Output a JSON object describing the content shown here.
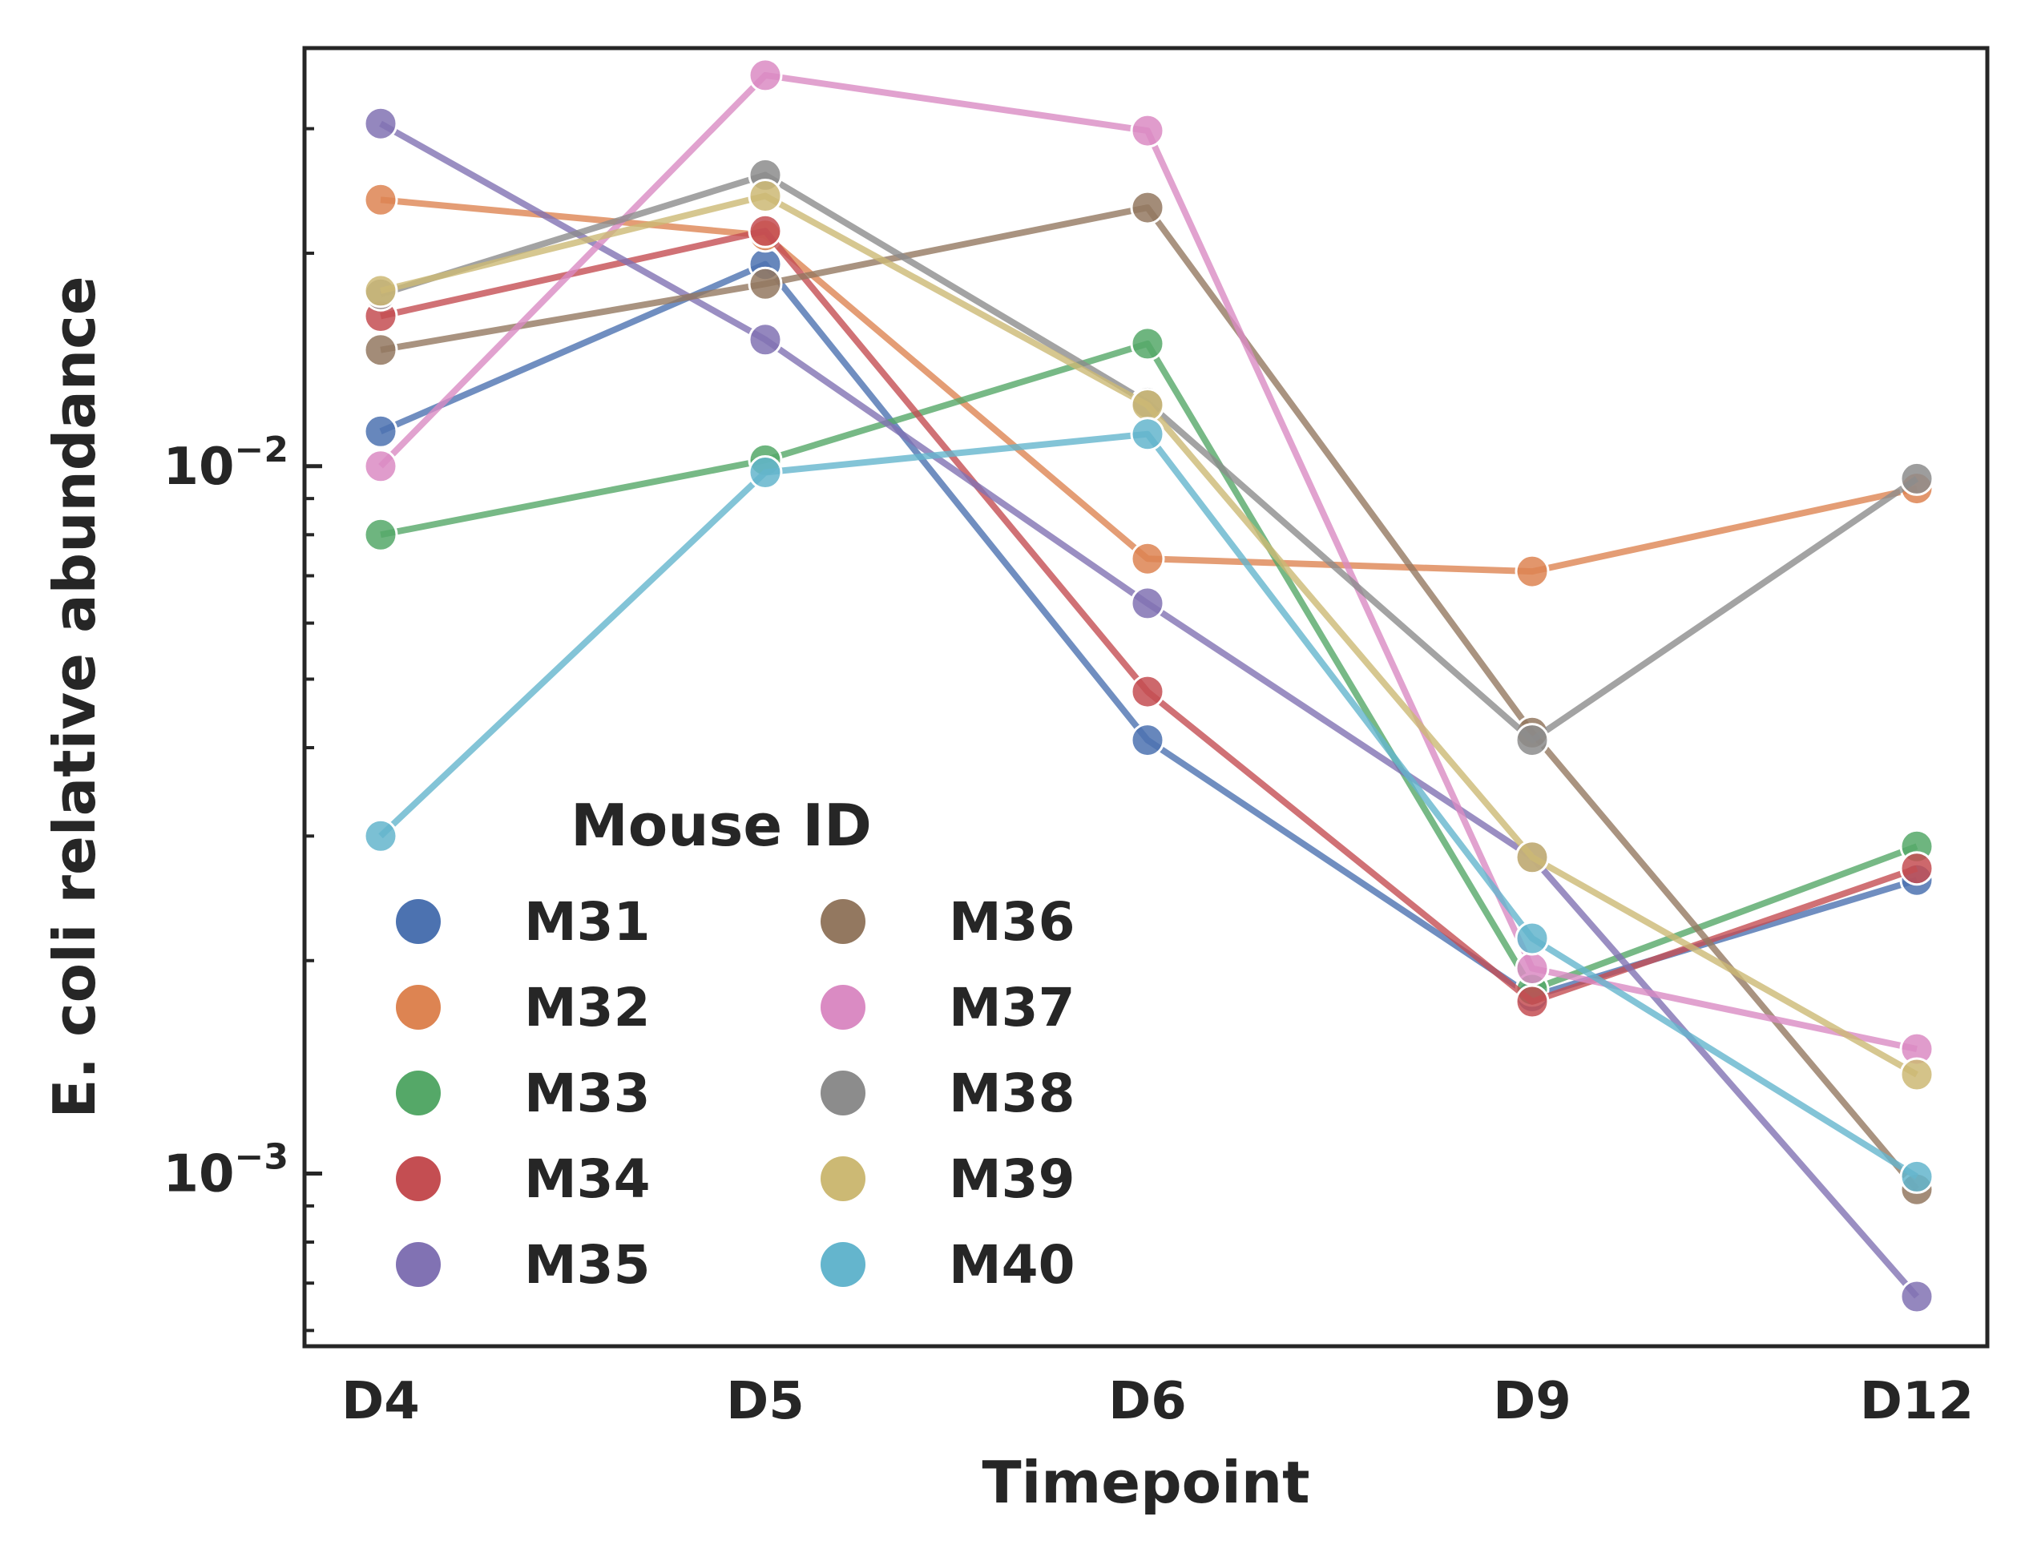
{
  "chart_data": {
    "type": "line",
    "title": "",
    "xlabel": "Timepoint",
    "ylabel": "E. coli relative abundance",
    "y_scale": "log",
    "ylim": [
      0.00057,
      0.039
    ],
    "grid": false,
    "x": [
      "D4",
      "D5",
      "D6",
      "D9",
      "D12"
    ],
    "y_ticks": [
      {
        "value": 0.01,
        "label_base": "10",
        "label_exp": "−2"
      },
      {
        "value": 0.001,
        "label_base": "10",
        "label_exp": "−3"
      }
    ],
    "legend": {
      "title": "Mouse ID",
      "placement": "lower-left",
      "columns": 2
    },
    "series": [
      {
        "name": "M31",
        "color": "#4c72b0",
        "values": [
          0.0112,
          0.0193,
          0.0041,
          0.00178,
          0.0026
        ]
      },
      {
        "name": "M32",
        "color": "#dd8452",
        "values": [
          0.0238,
          0.0212,
          0.0074,
          0.0071,
          0.0093
        ]
      },
      {
        "name": "M33",
        "color": "#55a868",
        "values": [
          0.008,
          0.0102,
          0.0149,
          0.00182,
          0.0029
        ]
      },
      {
        "name": "M34",
        "color": "#c44e52",
        "values": [
          0.0163,
          0.0215,
          0.0048,
          0.00175,
          0.0027
        ]
      },
      {
        "name": "M35",
        "color": "#8172b3",
        "values": [
          0.0305,
          0.0151,
          0.0064,
          0.0028,
          0.00067
        ]
      },
      {
        "name": "M36",
        "color": "#937860",
        "values": [
          0.0146,
          0.0181,
          0.0232,
          0.0042,
          0.00095
        ]
      },
      {
        "name": "M37",
        "color": "#da8bc3",
        "values": [
          0.01,
          0.0357,
          0.0298,
          0.00195,
          0.0015
        ]
      },
      {
        "name": "M38",
        "color": "#8c8c8c",
        "values": [
          0.0175,
          0.0258,
          0.0123,
          0.0041,
          0.0096
        ]
      },
      {
        "name": "M39",
        "color": "#ccb974",
        "values": [
          0.0177,
          0.0241,
          0.0122,
          0.0028,
          0.00138
        ]
      },
      {
        "name": "M40",
        "color": "#64b5cd",
        "values": [
          0.003,
          0.0098,
          0.0111,
          0.00215,
          0.00099
        ]
      }
    ]
  }
}
